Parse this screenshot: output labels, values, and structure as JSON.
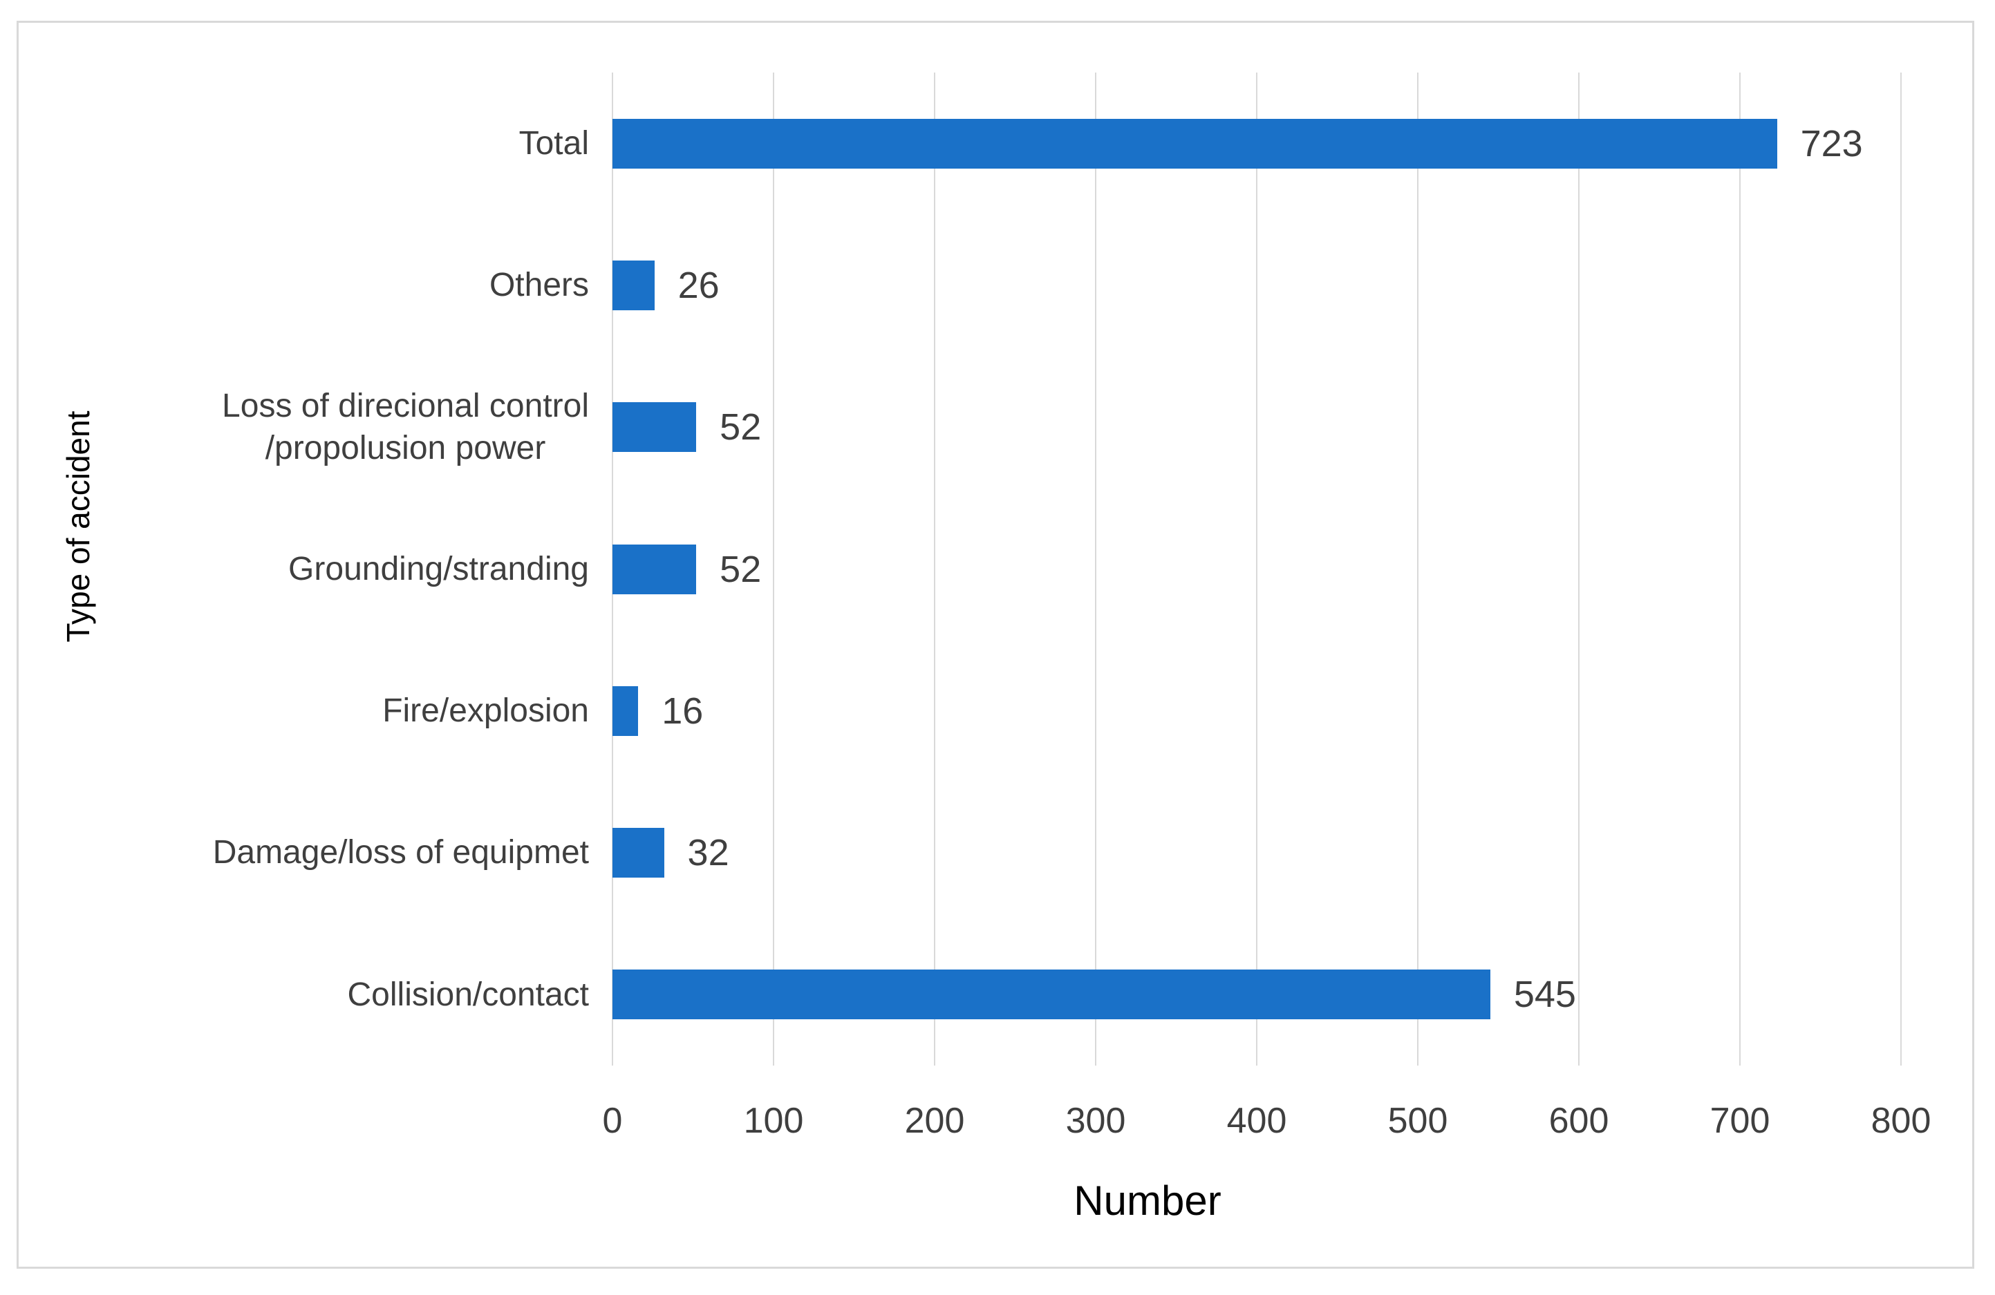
{
  "figure": {
    "background": "#ffffff",
    "border_color": "#d9d9d9"
  },
  "chart_data": {
    "type": "bar",
    "orientation": "horizontal",
    "title": "",
    "xlabel": "Number",
    "ylabel": "Type of accident",
    "categories_top_to_bottom": [
      "Total",
      "Others",
      "Loss of direcional control\n/propolusion power",
      "Grounding/stranding",
      "Fire/explosion",
      "Damage/loss of equipmet",
      "Collision/contact"
    ],
    "values": [
      723,
      26,
      52,
      52,
      16,
      32,
      545
    ],
    "data_labels": [
      "723",
      "26",
      "52",
      "52",
      "16",
      "32",
      "545"
    ],
    "xlim": [
      0,
      800
    ],
    "xticks": [
      0,
      100,
      200,
      300,
      400,
      500,
      600,
      700,
      800
    ],
    "grid": "vertical",
    "legend": "none",
    "bar_color": "#1a71c8",
    "gridline_color": "#d9d9d9",
    "text_color": "#3f3f3f"
  }
}
